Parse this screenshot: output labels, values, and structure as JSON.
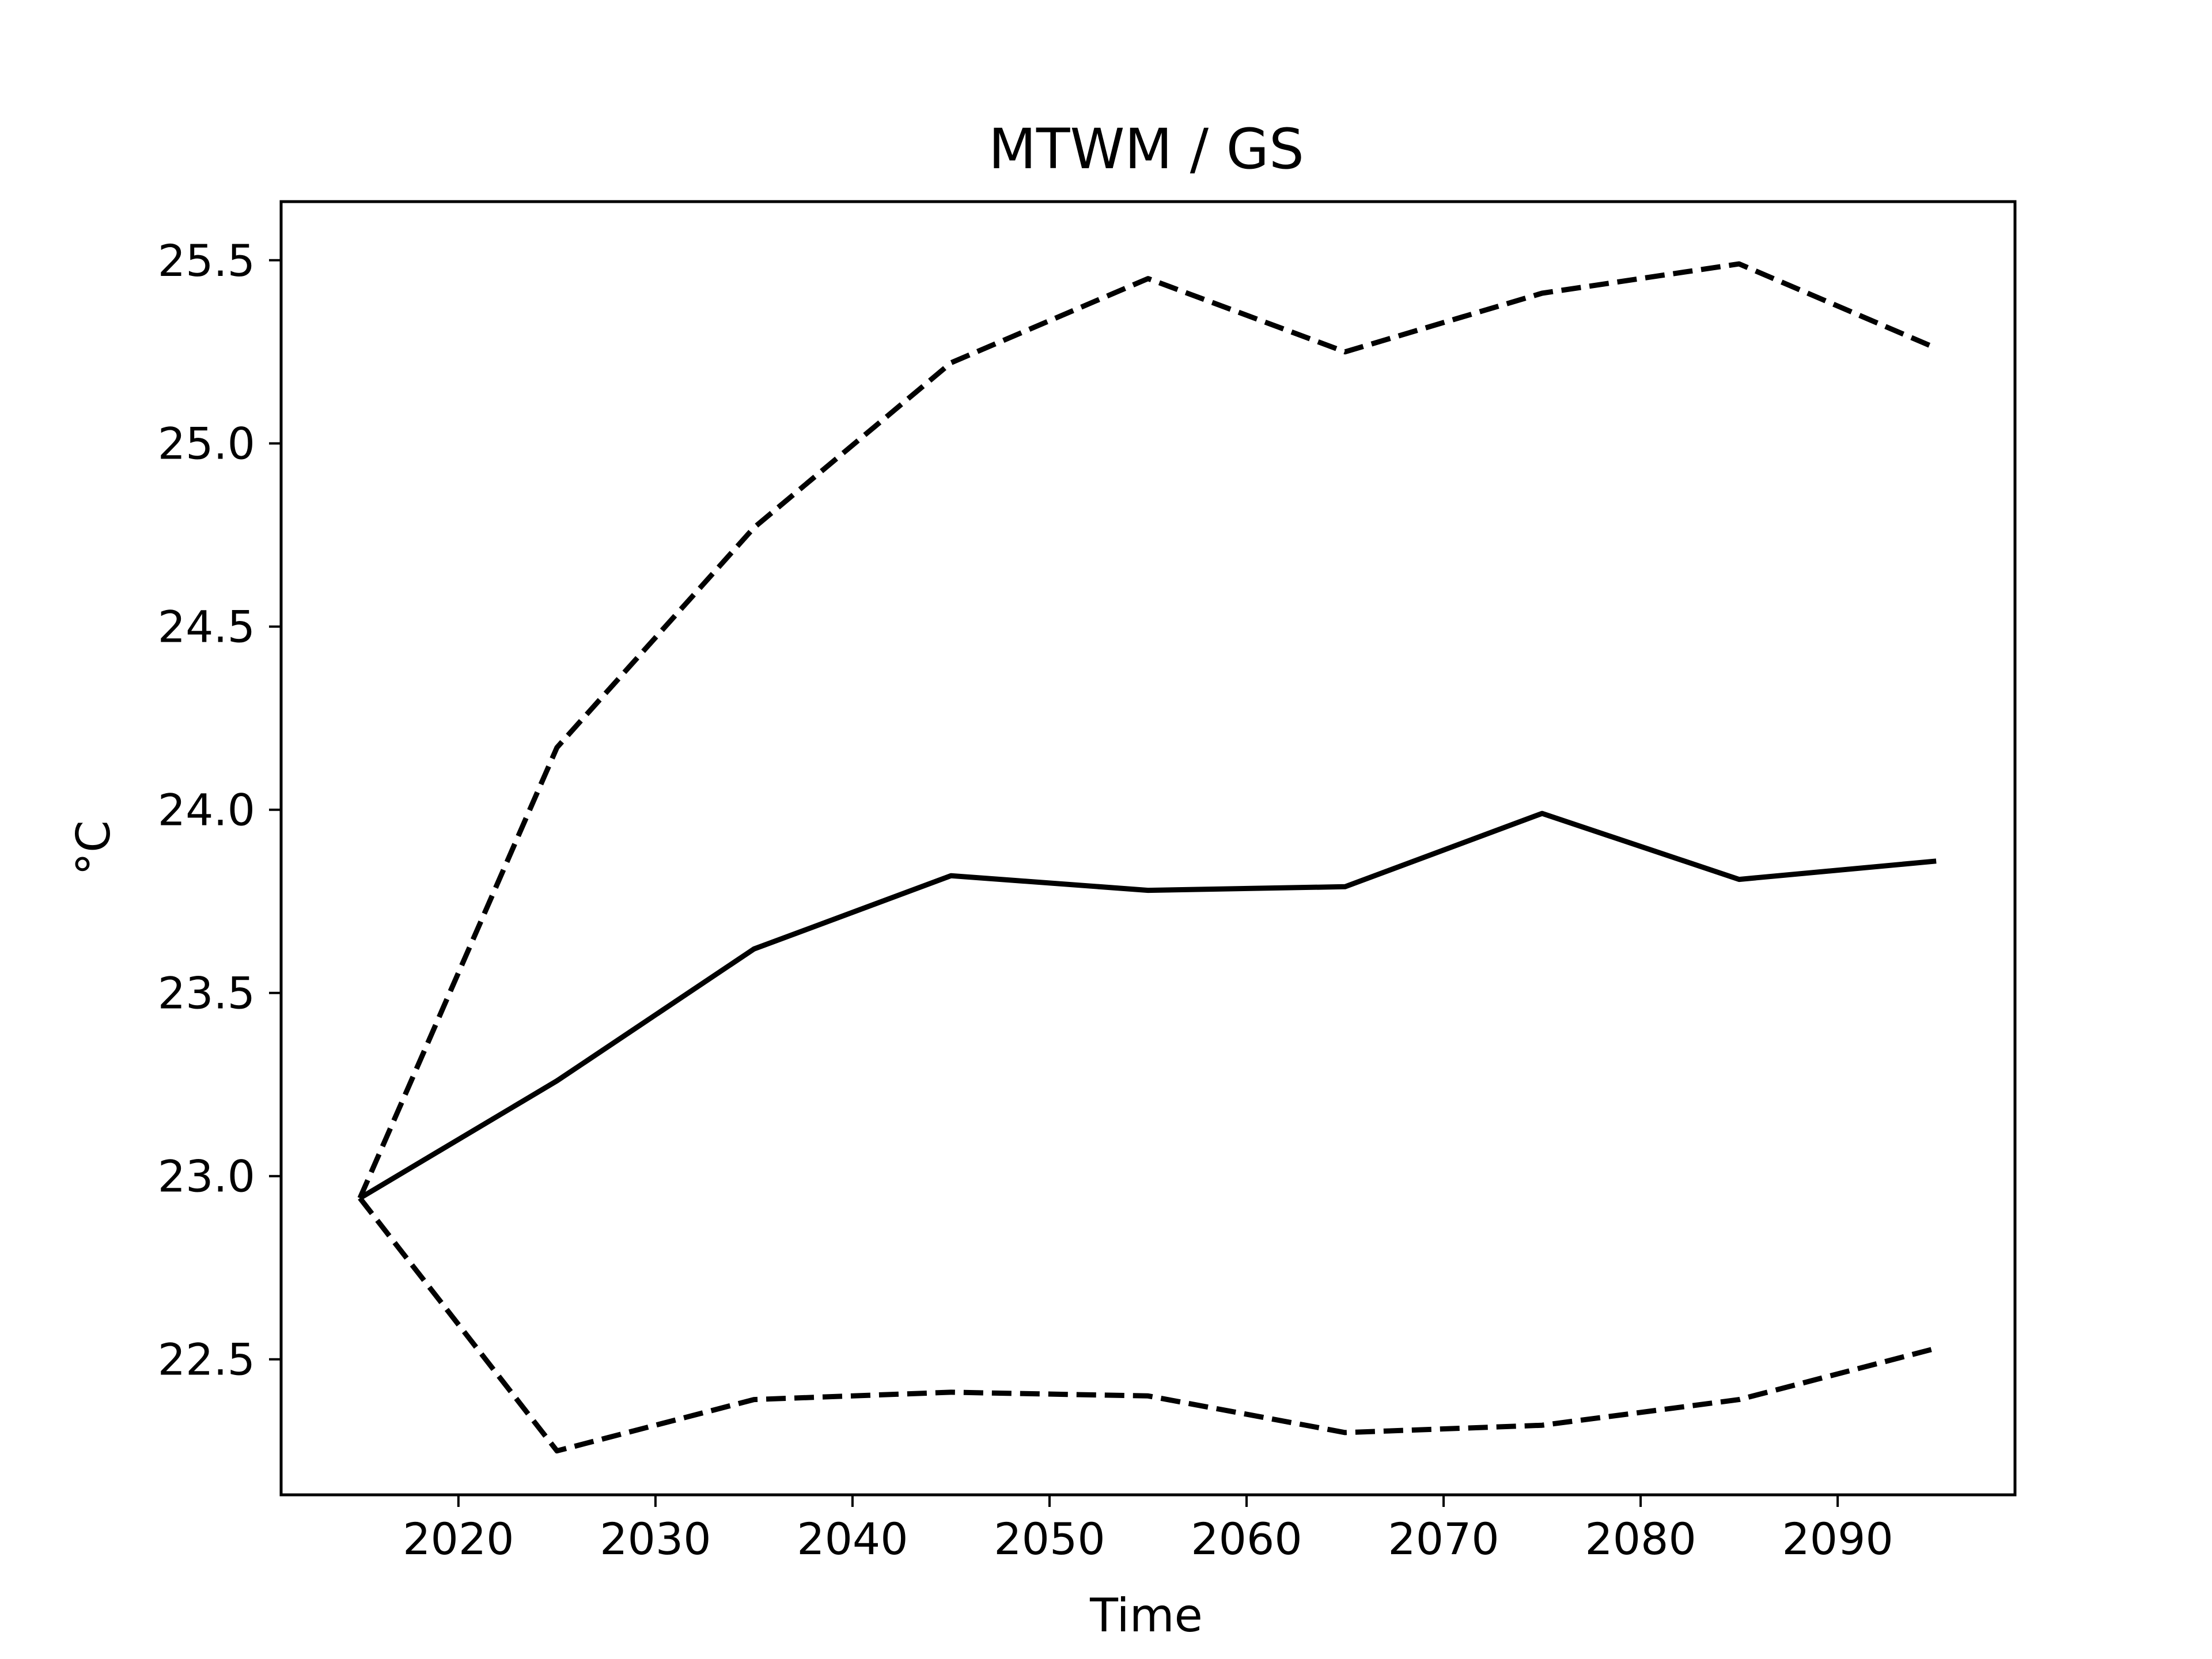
{
  "chart_data": {
    "type": "line",
    "title": "MTWM / GS",
    "xlabel": "Time",
    "ylabel": "°C",
    "xlim": [
      2011,
      2099
    ],
    "ylim": [
      22.13,
      25.66
    ],
    "xticks": [
      2020,
      2030,
      2040,
      2050,
      2060,
      2070,
      2080,
      2090
    ],
    "yticks": [
      22.5,
      23.0,
      23.5,
      24.0,
      24.5,
      25.0,
      25.5
    ],
    "ytick_labels": [
      "22.5",
      "23.0",
      "23.5",
      "24.0",
      "24.5",
      "25.0",
      "25.5"
    ],
    "grid": false,
    "legend": false,
    "x": [
      2015,
      2025,
      2035,
      2045,
      2055,
      2065,
      2075,
      2085,
      2095
    ],
    "series": [
      {
        "style": "solid",
        "color": "#000000",
        "values": [
          22.94,
          23.26,
          23.62,
          23.82,
          23.78,
          23.79,
          23.99,
          23.81,
          23.86
        ]
      },
      {
        "style": "dashed",
        "color": "#000000",
        "values": [
          22.94,
          24.17,
          24.77,
          25.22,
          25.45,
          25.25,
          25.41,
          25.49,
          25.26
        ]
      },
      {
        "style": "dashed",
        "color": "#000000",
        "values": [
          22.94,
          22.25,
          22.39,
          22.41,
          22.4,
          22.3,
          22.32,
          22.39,
          22.53
        ]
      }
    ]
  }
}
